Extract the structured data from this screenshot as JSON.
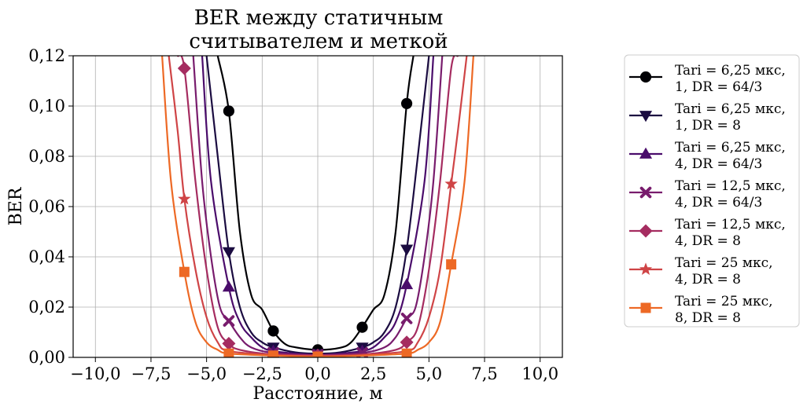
{
  "chart_data": {
    "type": "line",
    "title": [
      "BER между статичным",
      "считывателем и меткой"
    ],
    "xlabel": "Расстояние, м",
    "ylabel": "BER",
    "xlim": [
      -11,
      11
    ],
    "ylim": [
      0,
      0.12
    ],
    "grid": true,
    "legend_position": "outside-right",
    "xticks": [
      -10,
      -7.5,
      -5,
      -2.5,
      0,
      2.5,
      5,
      7.5,
      10
    ],
    "xtick_labels": [
      "−10,0",
      "−7,5",
      "−5,0",
      "−2,5",
      "0,0",
      "2,5",
      "5,0",
      "7,5",
      "10,0"
    ],
    "yticks": [
      0,
      0.02,
      0.04,
      0.06,
      0.08,
      0.1,
      0.12
    ],
    "ytick_labels": [
      "0,00",
      "0,02",
      "0,04",
      "0,06",
      "0,08",
      "0,10",
      "0,12"
    ],
    "series": [
      {
        "name": [
          "Tari = 6,25 мкс,",
          "1, DR = 64/3"
        ],
        "color": "#000004",
        "marker": "circle",
        "points": [
          [
            -4.5,
            0.12
          ],
          [
            -4,
            0.098
          ],
          [
            -3.5,
            0.05
          ],
          [
            -3,
            0.025
          ],
          [
            -2.5,
            0.019
          ],
          [
            -2,
            0.0105
          ],
          [
            -1.5,
            0.0055
          ],
          [
            -1,
            0.004
          ],
          [
            0,
            0.003
          ],
          [
            1,
            0.0038
          ],
          [
            1.5,
            0.006
          ],
          [
            2,
            0.012
          ],
          [
            2.5,
            0.019
          ],
          [
            3,
            0.025
          ],
          [
            3.5,
            0.05
          ],
          [
            4,
            0.101
          ],
          [
            4.3,
            0.12
          ]
        ],
        "markers": [
          [
            -4,
            0.098
          ],
          [
            -2,
            0.0105
          ],
          [
            0,
            0.003
          ],
          [
            2,
            0.012
          ],
          [
            4,
            0.101
          ]
        ]
      },
      {
        "name": [
          "Tari = 6,25 мкс,",
          "1, DR = 8"
        ],
        "color": "#1b0c41",
        "marker": "triangle-down",
        "points": [
          [
            -5,
            0.12
          ],
          [
            -4.5,
            0.08
          ],
          [
            -4,
            0.042
          ],
          [
            -3.5,
            0.02
          ],
          [
            -3,
            0.01
          ],
          [
            -2.5,
            0.006
          ],
          [
            -2,
            0.004
          ],
          [
            -1,
            0.002
          ],
          [
            0,
            0.0015
          ],
          [
            1,
            0.002
          ],
          [
            2,
            0.004
          ],
          [
            2.5,
            0.006
          ],
          [
            3,
            0.01
          ],
          [
            3.5,
            0.02
          ],
          [
            4,
            0.043
          ],
          [
            4.5,
            0.08
          ],
          [
            5,
            0.12
          ]
        ],
        "markers": [
          [
            -4,
            0.042
          ],
          [
            -2,
            0.004
          ],
          [
            0,
            0.0015
          ],
          [
            2,
            0.004
          ],
          [
            4,
            0.043
          ]
        ]
      },
      {
        "name": [
          "Tari = 6,25 мкс,",
          "4, DR = 64/3"
        ],
        "color": "#4a0c6b",
        "marker": "triangle-up",
        "points": [
          [
            -5.2,
            0.12
          ],
          [
            -4.8,
            0.07
          ],
          [
            -4,
            0.028
          ],
          [
            -3.5,
            0.014
          ],
          [
            -3,
            0.008
          ],
          [
            -2.5,
            0.004
          ],
          [
            -2,
            0.0025
          ],
          [
            -1,
            0.0015
          ],
          [
            0,
            0.001
          ],
          [
            1,
            0.0015
          ],
          [
            2,
            0.0025
          ],
          [
            2.5,
            0.004
          ],
          [
            3,
            0.008
          ],
          [
            3.5,
            0.014
          ],
          [
            4,
            0.029
          ],
          [
            4.8,
            0.07
          ],
          [
            5.2,
            0.12
          ]
        ],
        "markers": [
          [
            -4,
            0.028
          ],
          [
            -2,
            0.0025
          ],
          [
            0,
            0.001
          ],
          [
            2,
            0.0025
          ],
          [
            4,
            0.029
          ]
        ]
      },
      {
        "name": [
          "Tari = 12,5 мкс,",
          "4, DR = 64/3"
        ],
        "color": "#781c6d",
        "marker": "x",
        "points": [
          [
            -5.6,
            0.12
          ],
          [
            -5.2,
            0.07
          ],
          [
            -4.8,
            0.04
          ],
          [
            -4.4,
            0.02
          ],
          [
            -4,
            0.0145
          ],
          [
            -3.5,
            0.008
          ],
          [
            -3,
            0.004
          ],
          [
            -2,
            0.0018
          ],
          [
            0,
            0.001
          ],
          [
            2,
            0.0018
          ],
          [
            3,
            0.004
          ],
          [
            3.5,
            0.008
          ],
          [
            4,
            0.0155
          ],
          [
            4.4,
            0.02
          ],
          [
            4.8,
            0.04
          ],
          [
            5.2,
            0.07
          ],
          [
            5.6,
            0.12
          ]
        ],
        "markers": [
          [
            -4,
            0.0145
          ],
          [
            -2,
            0.0018
          ],
          [
            0,
            0.001
          ],
          [
            2,
            0.0018
          ],
          [
            4,
            0.0155
          ]
        ]
      },
      {
        "name": [
          "Tari = 12,5 мкс,",
          "4, DR = 8"
        ],
        "color": "#a52c60",
        "marker": "diamond",
        "points": [
          [
            -6.3,
            0.12
          ],
          [
            -6,
            0.115
          ],
          [
            -5.5,
            0.07
          ],
          [
            -5,
            0.035
          ],
          [
            -4.5,
            0.012
          ],
          [
            -4,
            0.0055
          ],
          [
            -3.5,
            0.003
          ],
          [
            -2,
            0.0012
          ],
          [
            0,
            0.0008
          ],
          [
            2,
            0.0012
          ],
          [
            3.5,
            0.003
          ],
          [
            4,
            0.006
          ],
          [
            4.5,
            0.012
          ],
          [
            5,
            0.035
          ],
          [
            5.5,
            0.07
          ],
          [
            6,
            0.115
          ],
          [
            6.3,
            0.12
          ]
        ],
        "markers": [
          [
            -6,
            0.115
          ],
          [
            -4,
            0.0055
          ],
          [
            0,
            0.0008
          ],
          [
            4,
            0.006
          ]
        ]
      },
      {
        "name": [
          "Tari = 25 мкс,",
          "4, DR = 8"
        ],
        "color": "#cf4446",
        "marker": "star",
        "points": [
          [
            -6.7,
            0.12
          ],
          [
            -6.3,
            0.09
          ],
          [
            -6,
            0.063
          ],
          [
            -5.5,
            0.035
          ],
          [
            -5,
            0.016
          ],
          [
            -4.5,
            0.006
          ],
          [
            -4,
            0.0025
          ],
          [
            -2,
            0.001
          ],
          [
            0,
            0.0005
          ],
          [
            2,
            0.001
          ],
          [
            4,
            0.0025
          ],
          [
            4.5,
            0.006
          ],
          [
            5,
            0.016
          ],
          [
            5.5,
            0.035
          ],
          [
            6,
            0.069
          ],
          [
            6.3,
            0.09
          ],
          [
            6.7,
            0.12
          ]
        ],
        "markers": [
          [
            -6,
            0.063
          ],
          [
            6,
            0.069
          ]
        ]
      },
      {
        "name": [
          "Tari = 25 мкс,",
          "8, DR = 8"
        ],
        "color": "#ed6925",
        "marker": "square",
        "points": [
          [
            -7,
            0.12
          ],
          [
            -6.6,
            0.07
          ],
          [
            -6,
            0.034
          ],
          [
            -5.5,
            0.014
          ],
          [
            -5,
            0.006
          ],
          [
            -4.5,
            0.003
          ],
          [
            -4,
            0.0015
          ],
          [
            -2,
            0.0007
          ],
          [
            0,
            0.0003
          ],
          [
            2,
            0.0007
          ],
          [
            4,
            0.0015
          ],
          [
            4.5,
            0.003
          ],
          [
            5,
            0.006
          ],
          [
            5.5,
            0.014
          ],
          [
            6,
            0.037
          ],
          [
            6.6,
            0.07
          ],
          [
            7,
            0.12
          ]
        ],
        "markers": [
          [
            -6,
            0.034
          ],
          [
            -4,
            0.0015
          ],
          [
            -2,
            0.0007
          ],
          [
            0,
            0.0003
          ],
          [
            4,
            0.0015
          ],
          [
            6,
            0.037
          ]
        ]
      }
    ]
  }
}
